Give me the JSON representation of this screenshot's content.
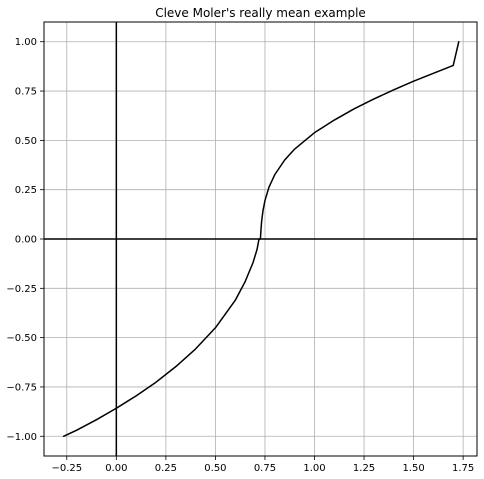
{
  "chart_data": {
    "type": "line",
    "title": "Cleve Moler's really mean example",
    "xlabel": "",
    "ylabel": "",
    "xlim": [
      -0.365,
      1.82
    ],
    "ylim": [
      -1.1,
      1.1
    ],
    "grid": true,
    "x_ticks": [
      -0.25,
      0.0,
      0.25,
      0.5,
      0.75,
      1.0,
      1.25,
      1.5,
      1.75
    ],
    "x_tick_labels": [
      "−0.25",
      "0.00",
      "0.25",
      "0.50",
      "0.75",
      "1.00",
      "1.25",
      "1.50",
      "1.75"
    ],
    "y_ticks": [
      -1.0,
      -0.75,
      -0.5,
      -0.25,
      0.0,
      0.25,
      0.5,
      0.75,
      1.0
    ],
    "y_tick_labels": [
      "−1.00",
      "−0.75",
      "−0.50",
      "−0.25",
      "0.00",
      "0.25",
      "0.50",
      "0.75",
      "1.00"
    ],
    "reference_lines": {
      "x_axis_at_y": 0,
      "y_axis_at_x": 0
    },
    "series": [
      {
        "color": "#000000",
        "x": [
          -0.266,
          -0.2,
          -0.1,
          0.0,
          0.1,
          0.2,
          0.3,
          0.4,
          0.5,
          0.6,
          0.65,
          0.69,
          0.71,
          0.72,
          0.727,
          0.73,
          0.733,
          0.74,
          0.75,
          0.77,
          0.8,
          0.85,
          0.9,
          1.0,
          1.1,
          1.2,
          1.3,
          1.4,
          1.5,
          1.6,
          1.7,
          1.728
        ],
        "y": [
          -1.0,
          -0.969,
          -0.916,
          -0.858,
          -0.795,
          -0.726,
          -0.647,
          -0.557,
          -0.45,
          -0.311,
          -0.216,
          -0.119,
          -0.053,
          -0.0,
          0.0,
          0.049,
          0.087,
          0.144,
          0.195,
          0.262,
          0.327,
          0.401,
          0.456,
          0.539,
          0.603,
          0.66,
          0.71,
          0.756,
          0.8,
          0.84,
          0.88,
          1.0
        ]
      }
    ]
  }
}
